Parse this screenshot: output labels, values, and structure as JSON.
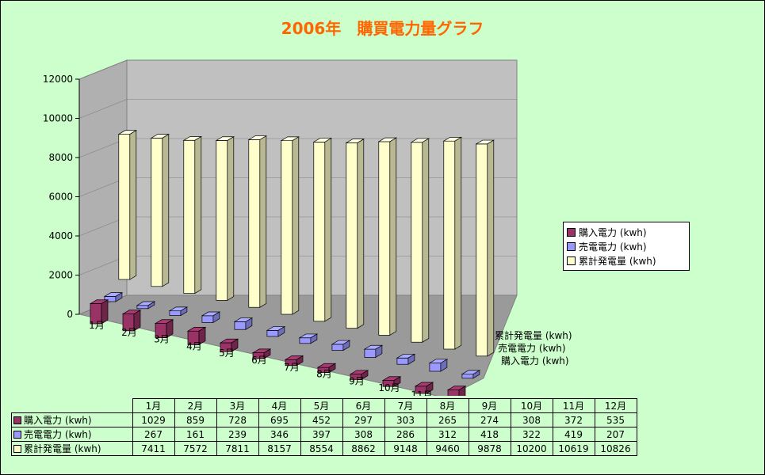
{
  "title": "2006年　購買電力量グラフ",
  "chart_data": {
    "type": "bar",
    "subtype": "3d-clustered-column",
    "categories": [
      "1月",
      "2月",
      "3月",
      "4月",
      "5月",
      "6月",
      "7月",
      "8月",
      "9月",
      "10月",
      "11月",
      "12月"
    ],
    "series": [
      {
        "name": "購入電力 (kwh)",
        "color": "#993366",
        "values": [
          1029,
          859,
          728,
          695,
          452,
          297,
          303,
          265,
          274,
          308,
          372,
          535
        ]
      },
      {
        "name": "売電電力 (kwh)",
        "color": "#9999ff",
        "values": [
          267,
          161,
          239,
          346,
          397,
          308,
          286,
          312,
          418,
          322,
          419,
          207
        ]
      },
      {
        "name": "累計発電量 (kwh)",
        "color": "#ffffcc",
        "values": [
          7411,
          7572,
          7811,
          8157,
          8554,
          8862,
          9148,
          9460,
          9878,
          10200,
          10619,
          10826
        ]
      }
    ],
    "yticks": [
      "0",
      "2000",
      "4000",
      "6000",
      "8000",
      "10000",
      "12000"
    ],
    "ylim": [
      0,
      12000
    ],
    "legend": "right",
    "grid": false
  }
}
